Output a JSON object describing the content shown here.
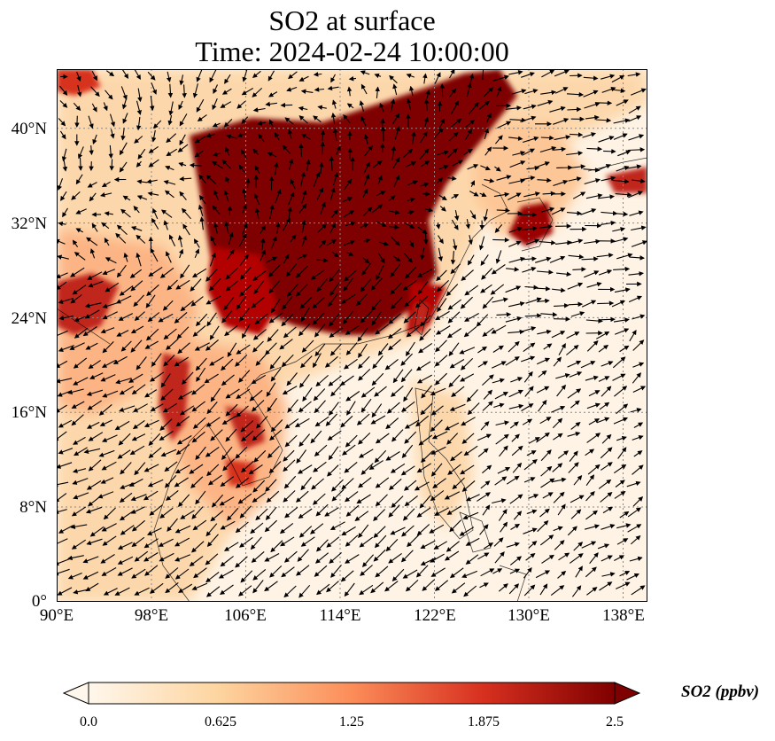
{
  "title": {
    "line1": "SO2 at surface",
    "line2": "Time: 2024-02-24 10:00:00"
  },
  "map": {
    "projection": "PlateCarree",
    "lon_range": [
      90,
      140
    ],
    "lat_range": [
      0,
      45
    ],
    "gridlines": true,
    "lat_ticks": [
      "40°N",
      "32°N",
      "24°N",
      "16°N",
      "8°N",
      "0°"
    ],
    "lon_ticks": [
      "90°E",
      "98°E",
      "106°E",
      "114°E",
      "122°E",
      "130°E",
      "138°E"
    ],
    "overlay": "wind vectors (quiver)"
  },
  "colorbar": {
    "label": "SO2 (ppbv)",
    "colormap": "OrRd",
    "min": 0.0,
    "max": 2.5,
    "extend": "both",
    "ticks": [
      "0.0",
      "0.625",
      "1.25",
      "1.875",
      "2.5"
    ],
    "colors": [
      "#fff7ec",
      "#fdd49e",
      "#fc8d59",
      "#d7301f",
      "#7f0000"
    ]
  }
}
